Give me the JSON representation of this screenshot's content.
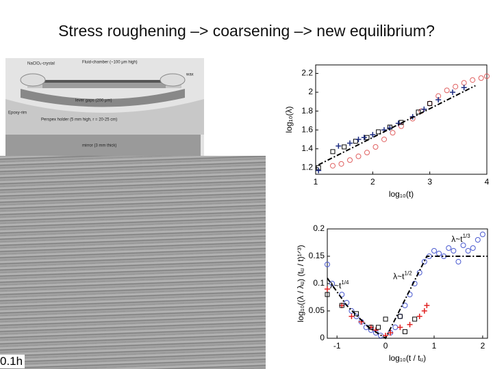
{
  "title": "Stress roughening –> coarsening –> new equilibrium?",
  "diagram": {
    "labels": [
      "NaClO₃-crystal",
      "Fluid-chamber (~100 μm high)",
      "wax",
      "Epoxy-rim",
      "lever gaps (200 μm)",
      "Perspex holder (5 mm high, r = 20-25 cm)",
      "mirror (3 mm thick)"
    ]
  },
  "photo_label": "0.1h",
  "chart_data": [
    {
      "type": "scatter",
      "xlabel": "log₁₀(t)",
      "ylabel": "log₁₀(λ)",
      "xlim": [
        1,
        4
      ],
      "xticks": [
        1,
        2,
        3,
        4
      ],
      "ylim": [
        1.13,
        2.29
      ],
      "yticks": [
        1.2,
        1.4,
        1.6,
        1.8,
        2,
        2.2
      ],
      "series": [
        {
          "marker": "circle",
          "color": "#e06060",
          "x": [
            1.3,
            1.45,
            1.6,
            1.75,
            1.9,
            2.05,
            2.2,
            2.35,
            2.5,
            2.7,
            2.85,
            3.0,
            3.15,
            3.3,
            3.45,
            3.6,
            3.75,
            3.9,
            4.0
          ],
          "values": [
            1.22,
            1.24,
            1.28,
            1.32,
            1.36,
            1.42,
            1.5,
            1.57,
            1.64,
            1.72,
            1.8,
            1.88,
            1.96,
            2.02,
            2.06,
            2.1,
            2.13,
            2.15,
            2.17
          ]
        },
        {
          "marker": "square",
          "color": "#000000",
          "x": [
            1.05,
            1.3,
            1.5,
            1.7,
            1.9,
            2.1,
            2.3,
            2.5,
            2.8,
            3.0
          ],
          "values": [
            1.2,
            1.37,
            1.42,
            1.48,
            1.52,
            1.58,
            1.63,
            1.68,
            1.79,
            1.88
          ]
        },
        {
          "marker": "plus",
          "color": "#1a2a80",
          "x": [
            1.05,
            1.4,
            1.6,
            1.75,
            1.85,
            2.0,
            2.2,
            2.3,
            2.45,
            2.7,
            2.9,
            3.15,
            3.4,
            3.6
          ],
          "values": [
            1.17,
            1.43,
            1.46,
            1.5,
            1.52,
            1.55,
            1.6,
            1.62,
            1.67,
            1.74,
            1.82,
            1.92,
            2.0,
            2.05
          ]
        },
        {
          "marker": "line",
          "color": "#000000",
          "x": [
            1.05,
            3.8
          ],
          "values": [
            1.23,
            2.07
          ]
        }
      ]
    },
    {
      "type": "scatter",
      "xlabel": "log₁₀(t / tᵤ)",
      "ylabel": "log₁₀((λ / λᵤ) (tᵤ / t)¹ᐟ³)",
      "xlim": [
        -1.2,
        2.1
      ],
      "xticks": [
        -1,
        0,
        1,
        2
      ],
      "ylim": [
        0,
        0.2
      ],
      "yticks": [
        0,
        0.05,
        0.1,
        0.15,
        0.2
      ],
      "annotations": [
        {
          "text": "λ~t",
          "exp": "1/4",
          "x": -0.95,
          "y": 0.095
        },
        {
          "text": "λ~t",
          "exp": "1/2",
          "x": 0.35,
          "y": 0.112
        },
        {
          "text": "λ~t",
          "exp": "1/3",
          "x": 1.55,
          "y": 0.18
        }
      ],
      "series": [
        {
          "marker": "circle",
          "color": "#4a5ad0",
          "x": [
            -1.2,
            -1.1,
            -0.9,
            -0.8,
            -0.7,
            -0.6,
            -0.5,
            -0.4,
            -0.3,
            -0.2,
            -0.1,
            0.1,
            0.2,
            0.3,
            0.4,
            0.5,
            0.6,
            0.7,
            0.8,
            0.9,
            1.0,
            1.1,
            1.2,
            1.3,
            1.4,
            1.5,
            1.6,
            1.7,
            1.8,
            1.9,
            2.0
          ],
          "values": [
            0.135,
            0.1,
            0.08,
            0.065,
            0.05,
            0.04,
            0.03,
            0.02,
            0.015,
            0.01,
            0.005,
            0.01,
            0.02,
            0.04,
            0.06,
            0.08,
            0.1,
            0.12,
            0.14,
            0.15,
            0.16,
            0.155,
            0.15,
            0.165,
            0.16,
            0.14,
            0.17,
            0.16,
            0.165,
            0.18,
            0.19
          ]
        },
        {
          "marker": "plus",
          "color": "#e02020",
          "x": [
            -1.2,
            -0.9,
            -0.7,
            -0.5,
            -0.3,
            -0.2,
            0.0,
            0.1,
            0.3,
            0.5,
            0.7,
            0.8,
            0.85
          ],
          "values": [
            0.09,
            0.06,
            0.04,
            0.03,
            0.02,
            0.015,
            0.005,
            0.01,
            0.02,
            0.025,
            0.04,
            0.05,
            0.06
          ]
        },
        {
          "marker": "square",
          "color": "#000000",
          "x": [
            -1.2,
            -0.9,
            -0.6,
            -0.3,
            -0.15,
            0.0,
            0.3,
            0.4,
            0.6
          ],
          "values": [
            0.08,
            0.06,
            0.045,
            0.02,
            0.02,
            0.035,
            0.04,
            0.012,
            0.035
          ]
        },
        {
          "marker": "line",
          "color": "#000000",
          "x": [
            -1.2,
            -0.8,
            -0.35,
            0,
            0.85,
            2.1
          ],
          "values": [
            0.11,
            0.06,
            0.02,
            0,
            0.15,
            0.15
          ]
        }
      ]
    }
  ]
}
